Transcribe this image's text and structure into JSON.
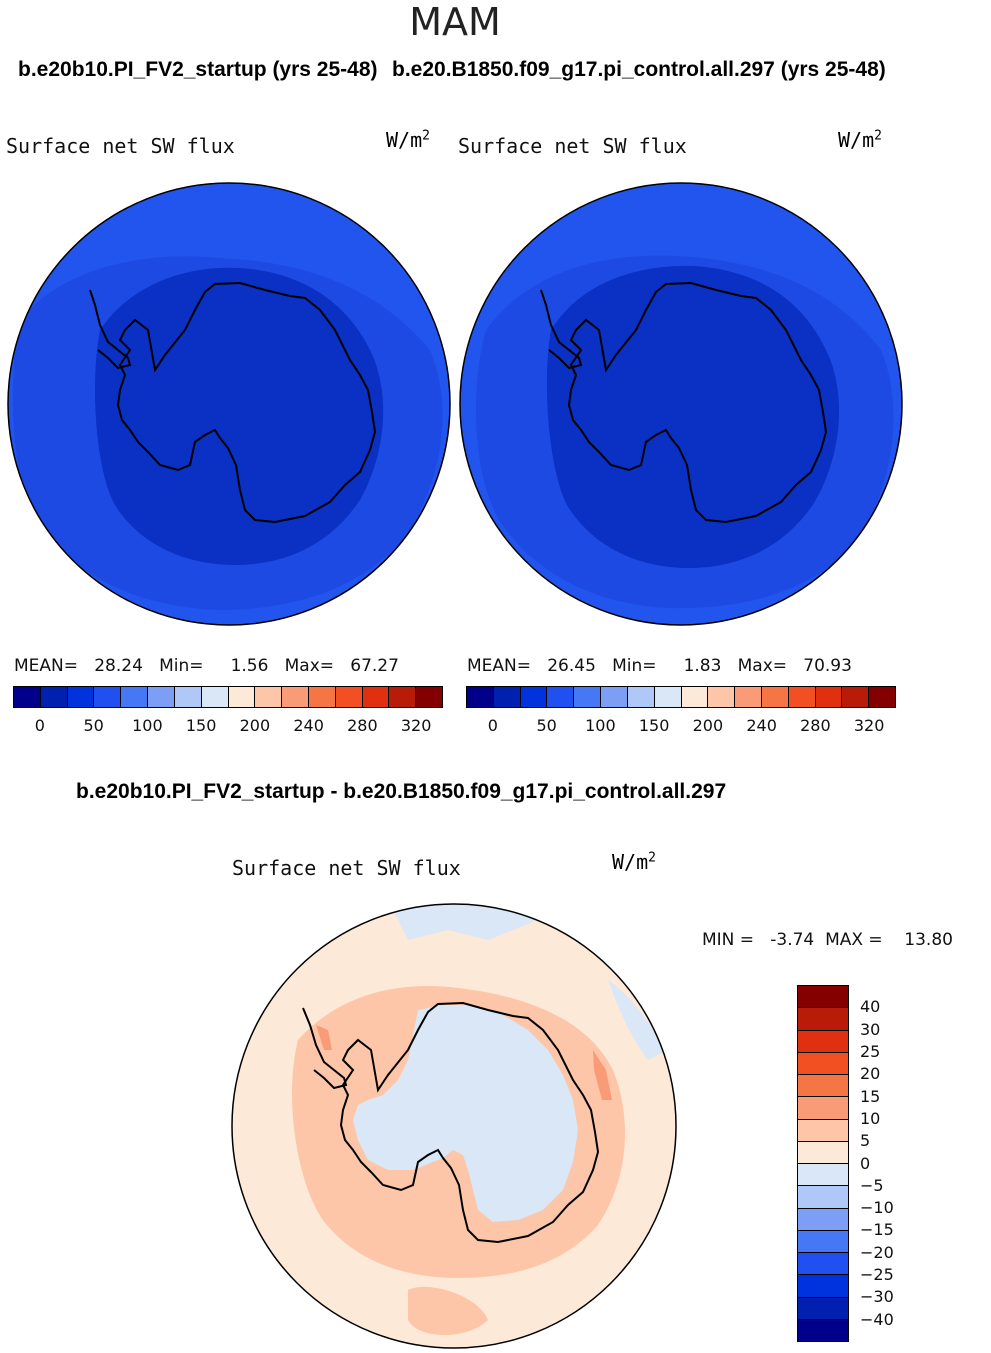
{
  "title": "MAM",
  "panels": [
    {
      "case": "b.e20b10.PI_FV2_startup (yrs 25-48)",
      "variable": "Surface net SW flux",
      "units_base": "W/m",
      "units_exp": "2",
      "stats": {
        "mean_label": "MEAN=",
        "mean": "28.24",
        "min_label": "Min=",
        "min": "1.56",
        "max_label": "Max=",
        "max": "67.27"
      }
    },
    {
      "case": "b.e20.B1850.f09_g17.pi_control.all.297 (yrs 25-48)",
      "variable": "Surface net SW flux",
      "units_base": "W/m",
      "units_exp": "2",
      "stats": {
        "mean_label": "MEAN=",
        "mean": "26.45",
        "min_label": "Min=",
        "min": "1.83",
        "max_label": "Max=",
        "max": "70.93"
      }
    }
  ],
  "difference": {
    "case": "b.e20b10.PI_FV2_startup - b.e20.B1850.f09_g17.pi_control.all.297",
    "variable": "Surface net SW flux",
    "units_base": "W/m",
    "units_exp": "2",
    "min_label": "MIN =",
    "min": "-3.74",
    "max_label": "MAX =",
    "max": "13.80"
  },
  "colorbar_abs": {
    "colors": [
      "#00008b",
      "#0020b0",
      "#0033dd",
      "#2050f0",
      "#4677f5",
      "#7d9ef5",
      "#b0c8f7",
      "#d9e7f7",
      "#fde9d8",
      "#fdc6a8",
      "#fa9b77",
      "#f67545",
      "#f25022",
      "#e03010",
      "#b81c08",
      "#840000"
    ],
    "ticks": [
      "0",
      "50",
      "100",
      "150",
      "200",
      "240",
      "280",
      "320"
    ]
  },
  "colorbar_diff": {
    "colors": [
      "#840000",
      "#b81c08",
      "#e03010",
      "#f25022",
      "#f67545",
      "#fa9b77",
      "#fdc6a8",
      "#fde9d8",
      "#d9e7f7",
      "#b0c8f7",
      "#7d9ef5",
      "#4677f5",
      "#2050f0",
      "#0033dd",
      "#0020b0",
      "#00008b"
    ],
    "ticks": [
      "40",
      "30",
      "25",
      "20",
      "15",
      "10",
      "5",
      "0",
      "-5",
      "-10",
      "-15",
      "-20",
      "-25",
      "-30",
      "-40"
    ]
  },
  "map_colors": {
    "outer": "#2255ee",
    "mid": "#1e45dd",
    "inner": "#0a30c4",
    "diff_bg": "#fde9d8",
    "diff_pos": "#fdc6a8",
    "diff_pos2": "#fa9b77",
    "diff_neg": "#d9e7f7"
  }
}
